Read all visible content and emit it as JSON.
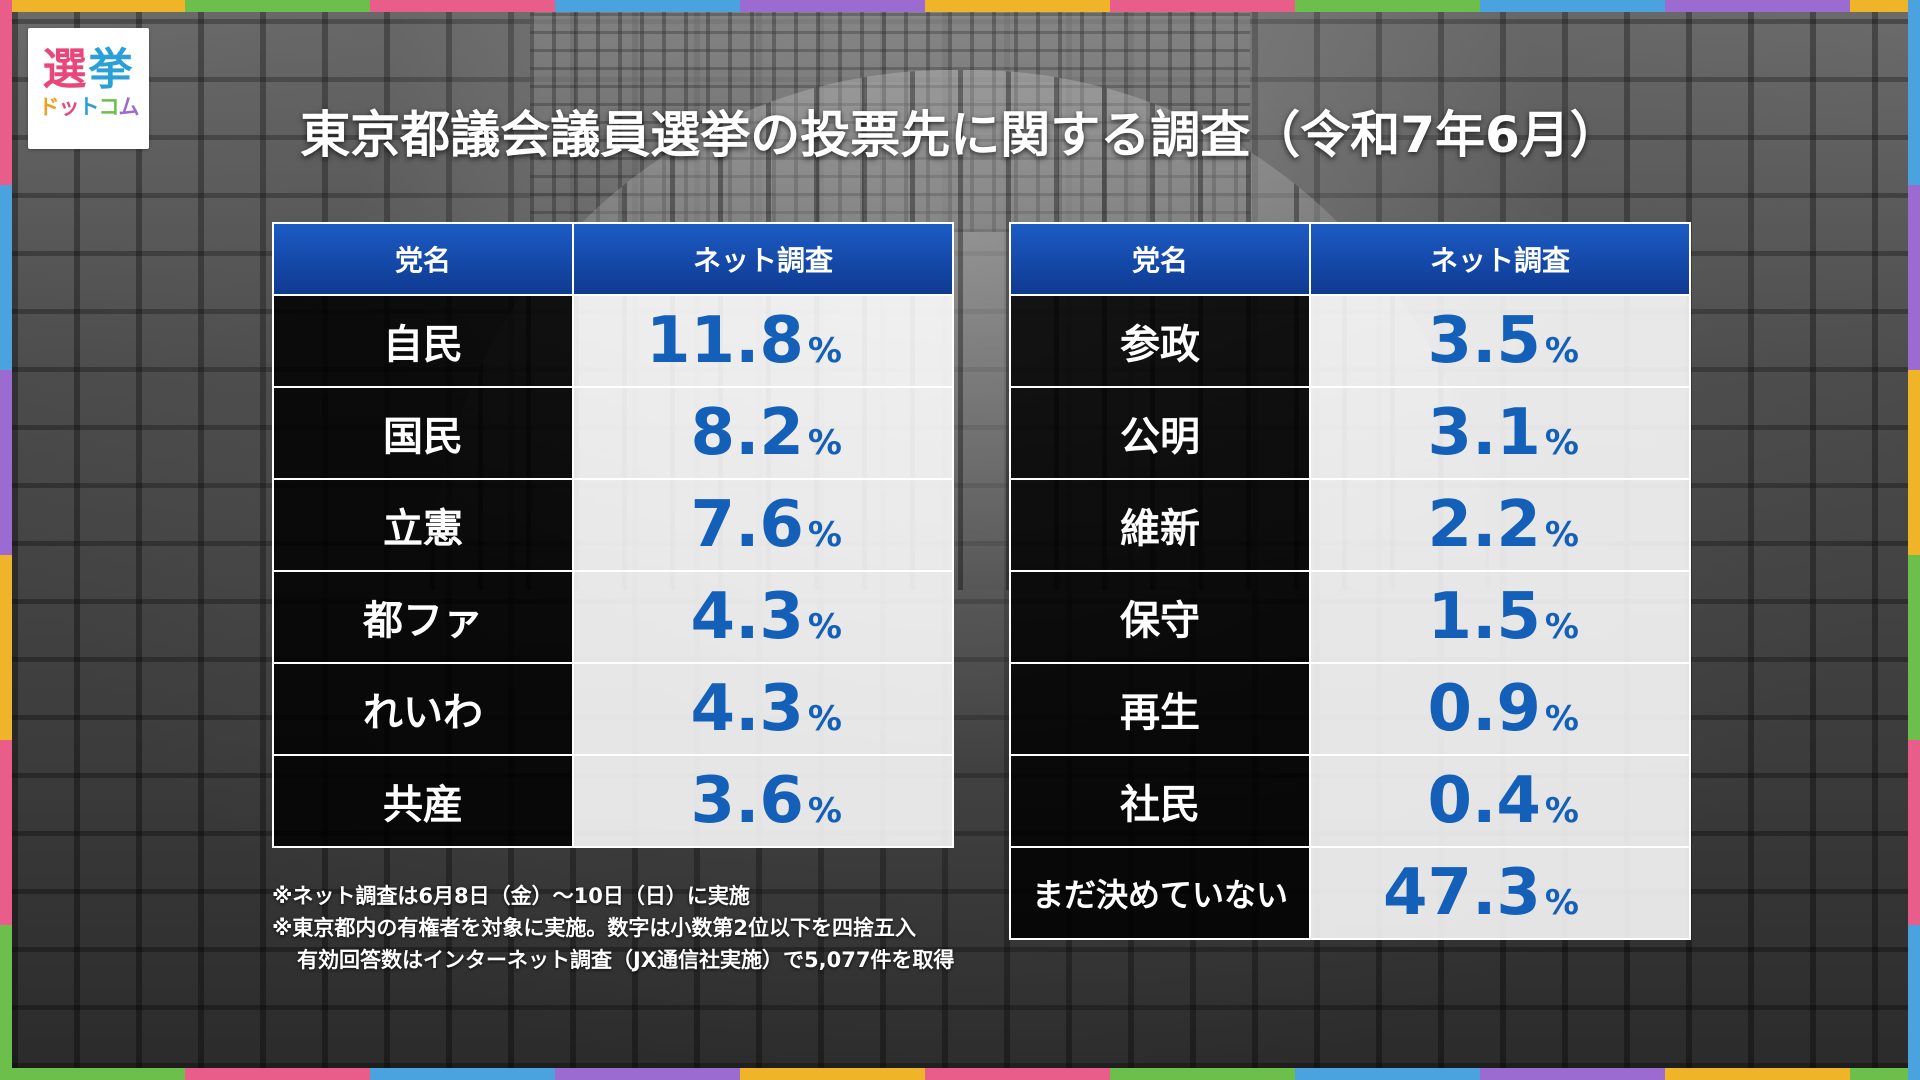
{
  "logo": {
    "line1a": "選",
    "line1b": "挙",
    "line2": "ドットコム"
  },
  "title": "東京都議会議員選挙の投票先に関する調査（令和7年6月）",
  "colors": {
    "header_blue": "#1447a6",
    "value_blue": "#1460b8",
    "frame": [
      "#f0b429",
      "#6cbf4a",
      "#e85d8a",
      "#4aa3df",
      "#9b6bd1",
      "#f0b429",
      "#e85d8a",
      "#6cbf4a",
      "#4aa3df",
      "#9b6bd1"
    ]
  },
  "chart_data": {
    "type": "table",
    "title": "東京都議会議員選挙の投票先に関する調査（令和7年6月）",
    "unit": "%",
    "tables": [
      {
        "header": {
          "party": "党名",
          "value": "ネット調査"
        },
        "rows": [
          {
            "party": "自民",
            "value": "11.8"
          },
          {
            "party": "国民",
            "value": "8.2"
          },
          {
            "party": "立憲",
            "value": "7.6"
          },
          {
            "party": "都ファ",
            "value": "4.3"
          },
          {
            "party": "れいわ",
            "value": "4.3"
          },
          {
            "party": "共産",
            "value": "3.6"
          }
        ]
      },
      {
        "header": {
          "party": "党名",
          "value": "ネット調査"
        },
        "rows": [
          {
            "party": "参政",
            "value": "3.5"
          },
          {
            "party": "公明",
            "value": "3.1"
          },
          {
            "party": "維新",
            "value": "2.2"
          },
          {
            "party": "保守",
            "value": "1.5"
          },
          {
            "party": "再生",
            "value": "0.9"
          },
          {
            "party": "社民",
            "value": "0.4"
          },
          {
            "party": "まだ決めていない",
            "value": "47.3"
          }
        ]
      }
    ]
  },
  "notes": [
    "※ネット調査は6月8日（金）〜10日（日）に実施",
    "※東京都内の有権者を対象に実施。数字は小数第2位以下を四捨五入",
    "有効回答数はインターネット調査（JX通信社実施）で5,077件を取得"
  ]
}
